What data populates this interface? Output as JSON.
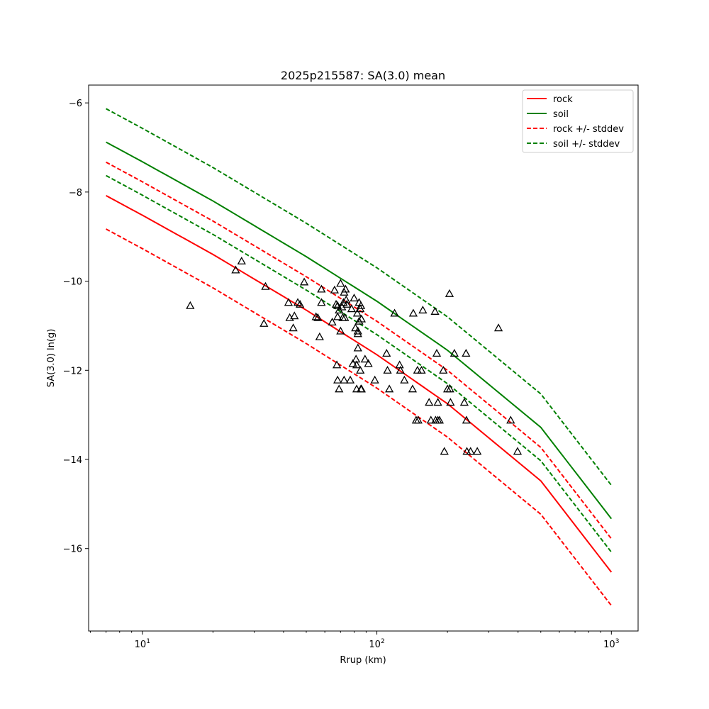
{
  "chart_data": {
    "type": "line",
    "title": "2025p215587: SA(3.0) mean",
    "xlabel": "Rrup (km)",
    "ylabel": "SA(3.0) ln(g)",
    "x_scale": "log",
    "xlim": [
      5.9,
      1300
    ],
    "ylim": [
      -17.85,
      -5.6
    ],
    "x_ticks": [
      10,
      100,
      1000
    ],
    "x_tick_labels": [
      {
        "base": "10",
        "exp": "1"
      },
      {
        "base": "10",
        "exp": "2"
      },
      {
        "base": "10",
        "exp": "3"
      }
    ],
    "y_ticks": [
      -16,
      -14,
      -12,
      -10,
      -8,
      -6
    ],
    "y_tick_labels": [
      "−16",
      "−14",
      "−12",
      "−10",
      "−8",
      "−6"
    ],
    "grid": false,
    "legend_position": "top-right",
    "series": [
      {
        "name": "rock",
        "color": "#ff0000",
        "style": "solid",
        "x": [
          7,
          10,
          20,
          50,
          100,
          200,
          500,
          1000
        ],
        "y": [
          -8.08,
          -8.52,
          -9.4,
          -10.65,
          -11.65,
          -12.75,
          -14.48,
          -16.53
        ]
      },
      {
        "name": "soil",
        "color": "#008000",
        "style": "solid",
        "x": [
          7,
          10,
          20,
          50,
          100,
          200,
          500,
          1000
        ],
        "y": [
          -6.88,
          -7.32,
          -8.2,
          -9.45,
          -10.45,
          -11.55,
          -13.28,
          -15.33
        ]
      },
      {
        "name": "rock +/- stddev",
        "color": "#ff0000",
        "style": "dashed",
        "x": [
          7,
          10,
          20,
          50,
          100,
          200,
          500,
          1000
        ],
        "y": [
          -7.33,
          -7.77,
          -8.65,
          -9.9,
          -10.9,
          -12.0,
          -13.73,
          -15.78
        ]
      },
      {
        "name": "",
        "color": "#ff0000",
        "style": "dashed",
        "x": [
          7,
          10,
          20,
          50,
          100,
          200,
          500,
          1000
        ],
        "y": [
          -8.83,
          -9.27,
          -10.15,
          -11.4,
          -12.4,
          -13.5,
          -15.23,
          -17.28
        ]
      },
      {
        "name": "soil +/- stddev",
        "color": "#008000",
        "style": "dashed",
        "x": [
          7,
          10,
          20,
          50,
          100,
          200,
          500,
          1000
        ],
        "y": [
          -6.13,
          -6.57,
          -7.45,
          -8.7,
          -9.7,
          -10.8,
          -12.53,
          -14.58
        ]
      },
      {
        "name": "",
        "color": "#008000",
        "style": "dashed",
        "x": [
          7,
          10,
          20,
          50,
          100,
          200,
          500,
          1000
        ],
        "y": [
          -7.63,
          -8.07,
          -8.95,
          -10.2,
          -11.2,
          -12.3,
          -14.03,
          -16.08
        ]
      }
    ],
    "legend": [
      {
        "label": "rock",
        "color": "#ff0000",
        "style": "solid"
      },
      {
        "label": "soil",
        "color": "#008000",
        "style": "solid"
      },
      {
        "label": "rock +/- stddev",
        "color": "#ff0000",
        "style": "dashed"
      },
      {
        "label": "soil +/- stddev",
        "color": "#008000",
        "style": "dashed"
      }
    ],
    "observations": {
      "marker": "triangle",
      "color": "#000000",
      "points": [
        [
          16,
          -10.55
        ],
        [
          25,
          -9.75
        ],
        [
          26.5,
          -9.55
        ],
        [
          33,
          -10.95
        ],
        [
          33.5,
          -10.12
        ],
        [
          42,
          -10.48
        ],
        [
          42.5,
          -10.82
        ],
        [
          44,
          -11.05
        ],
        [
          44.5,
          -10.78
        ],
        [
          46,
          -10.48
        ],
        [
          47,
          -10.52
        ],
        [
          49,
          -10.02
        ],
        [
          55,
          -10.8
        ],
        [
          56,
          -10.82
        ],
        [
          57,
          -11.25
        ],
        [
          58,
          -10.18
        ],
        [
          58,
          -10.48
        ],
        [
          64.5,
          -10.92
        ],
        [
          66,
          -10.2
        ],
        [
          67,
          -10.52
        ],
        [
          68,
          -10.55
        ],
        [
          68,
          -10.8
        ],
        [
          67.5,
          -11.88
        ],
        [
          68,
          -12.22
        ],
        [
          69,
          -12.42
        ],
        [
          69,
          -10.65
        ],
        [
          70,
          -10.05
        ],
        [
          70,
          -11.12
        ],
        [
          71,
          -10.58
        ],
        [
          71.5,
          -10.82
        ],
        [
          72,
          -10.48
        ],
        [
          72.5,
          -12.22
        ],
        [
          72.5,
          -10.25
        ],
        [
          73,
          -10.82
        ],
        [
          73.5,
          -10.18
        ],
        [
          74,
          -10.42
        ],
        [
          74.5,
          -10.52
        ],
        [
          77,
          -12.22
        ],
        [
          78,
          -10.62
        ],
        [
          79,
          -11.85
        ],
        [
          80,
          -10.38
        ],
        [
          81,
          -11.05
        ],
        [
          81.5,
          -11.75
        ],
        [
          82,
          -12.42
        ],
        [
          82,
          -11.88
        ],
        [
          82.5,
          -10.72
        ],
        [
          83,
          -11.5
        ],
        [
          83,
          -11.18
        ],
        [
          83,
          -11.12
        ],
        [
          84,
          -10.48
        ],
        [
          84,
          -10.9
        ],
        [
          85,
          -12.0
        ],
        [
          85,
          -10.62
        ],
        [
          85.5,
          -10.55
        ],
        [
          85.5,
          -12.42
        ],
        [
          86,
          -12.42
        ],
        [
          86,
          -10.85
        ],
        [
          89,
          -11.75
        ],
        [
          92,
          -11.85
        ],
        [
          98,
          -12.22
        ],
        [
          110,
          -11.62
        ],
        [
          111,
          -12.0
        ],
        [
          113,
          -12.42
        ],
        [
          119,
          -10.72
        ],
        [
          125,
          -11.88
        ],
        [
          126,
          -12.0
        ],
        [
          131,
          -12.22
        ],
        [
          142,
          -12.42
        ],
        [
          143,
          -10.72
        ],
        [
          147,
          -13.12
        ],
        [
          149,
          -12.0
        ],
        [
          150,
          -13.12
        ],
        [
          155,
          -12.0
        ],
        [
          157,
          -10.65
        ],
        [
          167,
          -12.72
        ],
        [
          170,
          -13.12
        ],
        [
          177,
          -10.68
        ],
        [
          178,
          -13.12
        ],
        [
          180,
          -11.62
        ],
        [
          182,
          -13.12
        ],
        [
          182,
          -12.72
        ],
        [
          185,
          -13.12
        ],
        [
          192,
          -12.0
        ],
        [
          194,
          -13.82
        ],
        [
          200,
          -12.42
        ],
        [
          204,
          -10.28
        ],
        [
          205,
          -12.42
        ],
        [
          206,
          -12.72
        ],
        [
          214,
          -11.62
        ],
        [
          236,
          -12.72
        ],
        [
          240,
          -11.62
        ],
        [
          241,
          -13.12
        ],
        [
          242,
          -13.82
        ],
        [
          251,
          -13.82
        ],
        [
          268,
          -13.82
        ],
        [
          330,
          -11.05
        ],
        [
          372,
          -13.12
        ],
        [
          398,
          -13.82
        ]
      ]
    }
  }
}
